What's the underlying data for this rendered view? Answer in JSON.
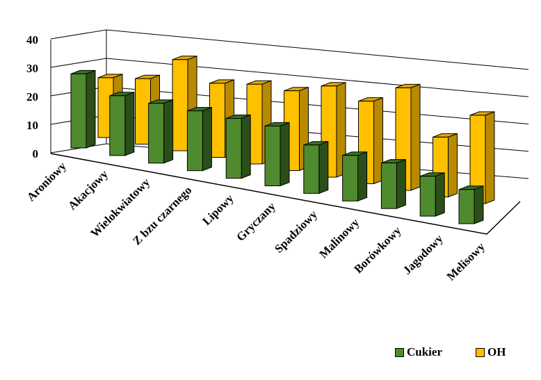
{
  "chart_data": {
    "type": "bar",
    "style": "3d-clustered-column",
    "categories": [
      "Aroniowy",
      "Akacjowy",
      "Wielokwiatowy",
      "Z bzu czarnego",
      "Lipowy",
      "Gryczany",
      "Spadziowy",
      "Malinowy",
      "Borówkowy",
      "Jagodowy",
      "Melisowy"
    ],
    "series": [
      {
        "name": "Cukier",
        "values": [
          26,
          21,
          21,
          21,
          21,
          21,
          17,
          16,
          16,
          14,
          12
        ],
        "color": "#4f8a2f",
        "side_color": "#2b4f19",
        "top_color": "#3c6e23"
      },
      {
        "name": "OH",
        "values": [
          21,
          23,
          32,
          26,
          28,
          28,
          32,
          29,
          36,
          21,
          31
        ],
        "color": "#ffc000",
        "side_color": "#b88a00",
        "top_color": "#e0a800"
      }
    ],
    "y_ticks": [
      "0",
      "10",
      "20",
      "30",
      "40"
    ],
    "ylim": [
      0,
      40
    ],
    "grid": true,
    "legend_position": "bottom-right"
  },
  "legend": {
    "items": [
      {
        "label": "Cukier",
        "color": "#4f8a2f"
      },
      {
        "label": "OH",
        "color": "#ffc000"
      }
    ]
  }
}
